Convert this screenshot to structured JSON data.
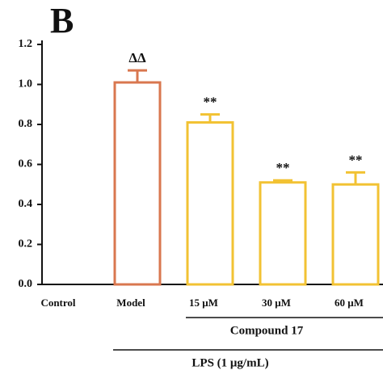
{
  "chart_data": {
    "type": "bar",
    "panel_label": "B",
    "categories": [
      "Control",
      "Model",
      "15 μM",
      "30 μM",
      "60 μM"
    ],
    "values": [
      null,
      1.01,
      0.81,
      0.51,
      0.5
    ],
    "errors": [
      null,
      0.06,
      0.04,
      0.01,
      0.06
    ],
    "annotations": [
      null,
      "ΔΔ",
      "**",
      "**",
      "**"
    ],
    "colors": [
      "#f2c233",
      "#d9774f",
      "#f2c233",
      "#f2c233",
      "#f2c233"
    ],
    "ylim": [
      0,
      1.2
    ],
    "yticks": [
      {
        "value": 0,
        "label": "0.0"
      },
      0.2,
      0.4,
      0.6,
      0.8,
      {
        "value": 1,
        "label": "1.0"
      },
      1.2
    ],
    "groups": [
      {
        "label": "Compound 17",
        "from": 2,
        "to": 4
      },
      {
        "label": "LPS (1 μg/mL)",
        "from": 1,
        "to": 4
      }
    ]
  }
}
